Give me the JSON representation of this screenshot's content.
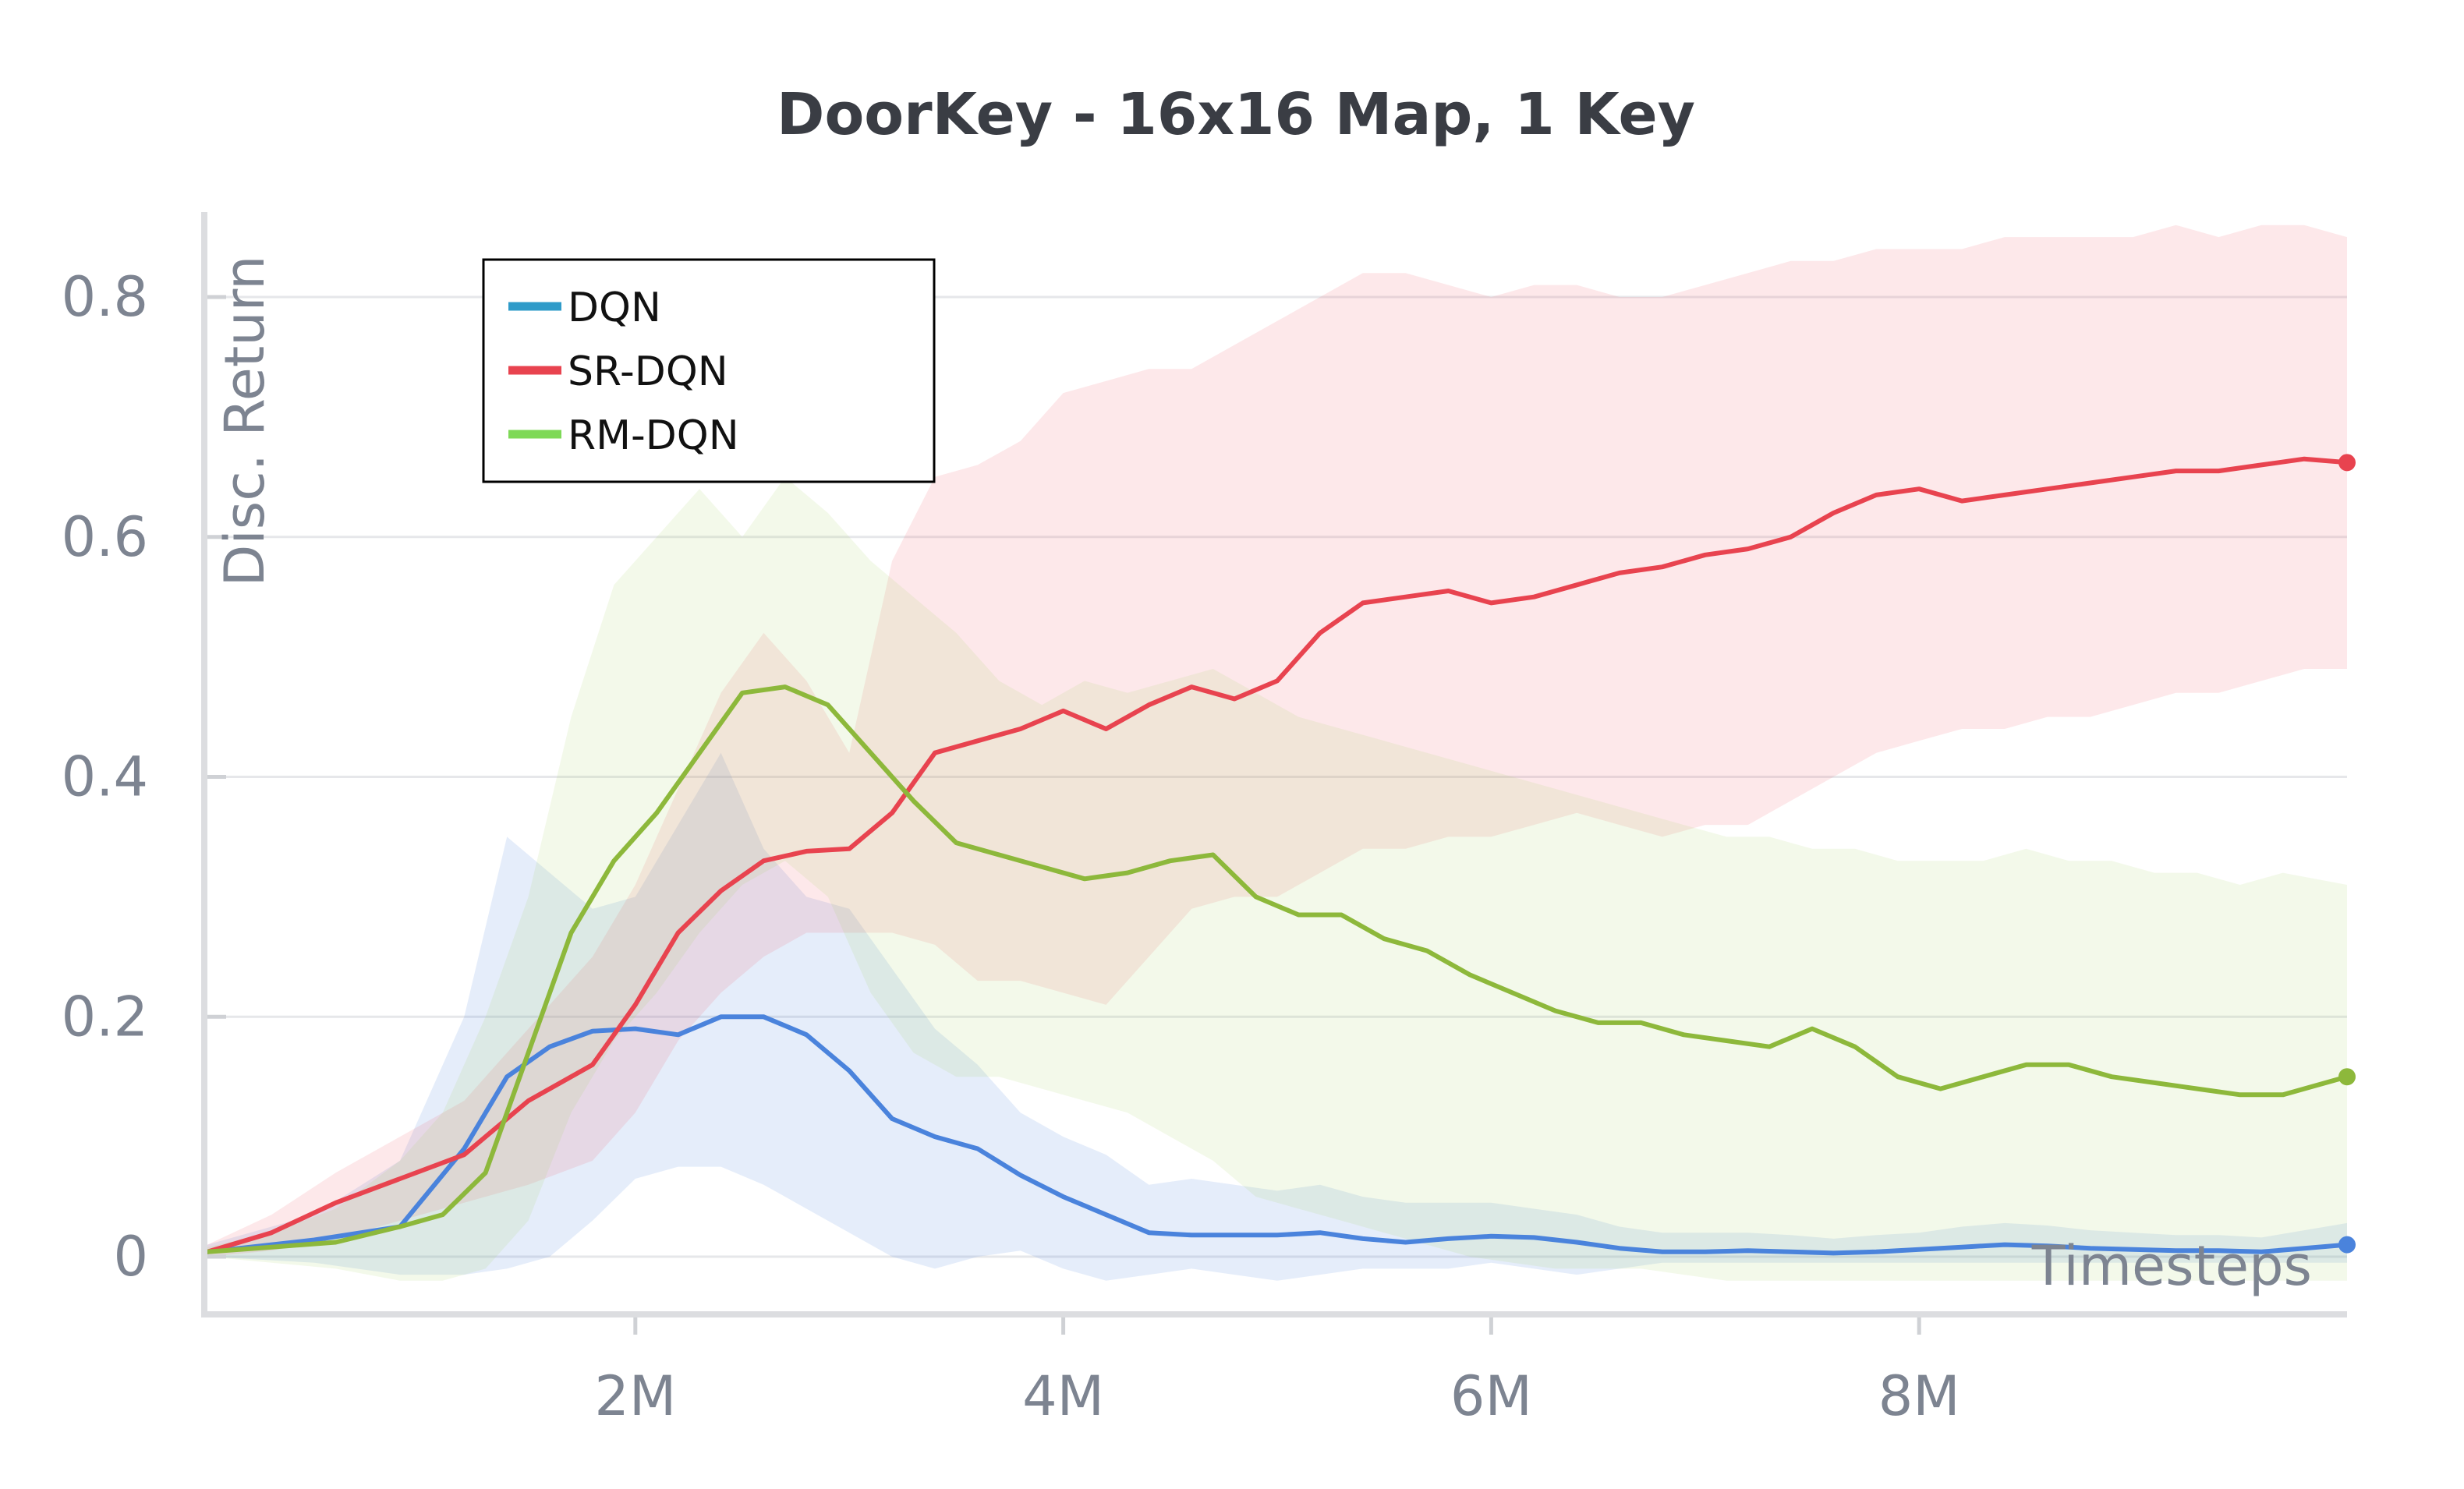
{
  "chart_data": {
    "type": "line",
    "title": "DoorKey - 16x16 Map, 1 Key",
    "xlabel": "Timesteps",
    "ylabel": "Disc. Return",
    "xlim": [
      0,
      10000000
    ],
    "ylim": [
      -0.05,
      0.87
    ],
    "x_ticks": [
      2000000,
      4000000,
      6000000,
      8000000
    ],
    "x_tick_labels": [
      "2M",
      "4M",
      "6M",
      "8M"
    ],
    "y_ticks": [
      0,
      0.2,
      0.4,
      0.6,
      0.8
    ],
    "y_tick_labels": [
      "0",
      "0.2",
      "0.4",
      "0.6",
      "0.8"
    ],
    "grid": true,
    "legend_position": "top-left",
    "series": [
      {
        "name": "DQN",
        "color": "#4a83dc",
        "legend_color": "#2f9bc9",
        "band_color": "#4a83dc",
        "x": [
          0,
          500000,
          900000,
          1200000,
          1400000,
          1600000,
          1800000,
          2000000,
          2200000,
          2400000,
          2600000,
          2800000,
          3000000,
          3200000,
          3400000,
          3600000,
          3800000,
          4000000,
          4200000,
          4400000,
          4600000,
          4800000,
          5000000,
          5200000,
          5400000,
          5600000,
          5800000,
          6000000,
          6200000,
          6400000,
          6600000,
          6800000,
          7000000,
          7200000,
          7400000,
          7600000,
          7800000,
          8000000,
          8200000,
          8400000,
          8600000,
          8800000,
          9000000,
          9200000,
          9400000,
          9600000,
          9800000,
          10000000
        ],
        "values": [
          0.004,
          0.014,
          0.025,
          0.09,
          0.15,
          0.175,
          0.188,
          0.19,
          0.185,
          0.2,
          0.2,
          0.185,
          0.155,
          0.115,
          0.1,
          0.09,
          0.068,
          0.05,
          0.035,
          0.02,
          0.018,
          0.018,
          0.018,
          0.02,
          0.015,
          0.012,
          0.015,
          0.017,
          0.016,
          0.012,
          0.007,
          0.004,
          0.004,
          0.005,
          0.004,
          0.003,
          0.004,
          0.006,
          0.008,
          0.01,
          0.009,
          0.007,
          0.006,
          0.005,
          0.005,
          0.004,
          0.007,
          0.01
        ],
        "lower": [
          0.0,
          -0.005,
          -0.015,
          -0.015,
          -0.01,
          0.0,
          0.03,
          0.065,
          0.075,
          0.075,
          0.06,
          0.04,
          0.02,
          0.0,
          -0.01,
          0.0,
          0.005,
          -0.01,
          -0.02,
          -0.015,
          -0.01,
          -0.015,
          -0.02,
          -0.015,
          -0.01,
          -0.01,
          -0.01,
          -0.005,
          -0.01,
          -0.015,
          -0.01,
          -0.005,
          -0.005,
          -0.005,
          -0.005,
          -0.005,
          -0.005,
          -0.005,
          -0.005,
          -0.005,
          -0.005,
          -0.005,
          -0.005,
          -0.005,
          -0.005,
          -0.005,
          -0.005,
          -0.005
        ],
        "upper": [
          0.01,
          0.035,
          0.08,
          0.2,
          0.35,
          0.32,
          0.29,
          0.3,
          0.36,
          0.42,
          0.34,
          0.3,
          0.29,
          0.24,
          0.19,
          0.16,
          0.12,
          0.1,
          0.085,
          0.06,
          0.065,
          0.06,
          0.055,
          0.06,
          0.05,
          0.045,
          0.045,
          0.045,
          0.04,
          0.035,
          0.025,
          0.02,
          0.02,
          0.02,
          0.018,
          0.015,
          0.018,
          0.02,
          0.025,
          0.028,
          0.026,
          0.022,
          0.02,
          0.018,
          0.018,
          0.016,
          0.022,
          0.028
        ]
      },
      {
        "name": "SR-DQN",
        "color": "#e8434f",
        "legend_color": "#e8434f",
        "band_color": "#ef5a6a",
        "x": [
          0,
          300000,
          600000,
          900000,
          1200000,
          1500000,
          1800000,
          2000000,
          2200000,
          2400000,
          2600000,
          2800000,
          3000000,
          3200000,
          3400000,
          3600000,
          3800000,
          4000000,
          4200000,
          4400000,
          4600000,
          4800000,
          5000000,
          5200000,
          5400000,
          5600000,
          5800000,
          6000000,
          6200000,
          6400000,
          6600000,
          6800000,
          7000000,
          7200000,
          7400000,
          7600000,
          7800000,
          8000000,
          8200000,
          8400000,
          8600000,
          8800000,
          9000000,
          9200000,
          9400000,
          9600000,
          9800000,
          10000000
        ],
        "values": [
          0.004,
          0.02,
          0.045,
          0.065,
          0.085,
          0.13,
          0.16,
          0.21,
          0.27,
          0.305,
          0.33,
          0.338,
          0.34,
          0.37,
          0.42,
          0.43,
          0.44,
          0.455,
          0.44,
          0.46,
          0.475,
          0.465,
          0.48,
          0.52,
          0.545,
          0.55,
          0.555,
          0.545,
          0.55,
          0.56,
          0.57,
          0.575,
          0.585,
          0.59,
          0.6,
          0.62,
          0.635,
          0.64,
          0.63,
          0.635,
          0.64,
          0.645,
          0.65,
          0.655,
          0.655,
          0.66,
          0.665,
          0.662
        ],
        "lower": [
          0.0,
          0.005,
          0.015,
          0.03,
          0.045,
          0.06,
          0.08,
          0.12,
          0.18,
          0.22,
          0.25,
          0.27,
          0.27,
          0.27,
          0.26,
          0.23,
          0.23,
          0.22,
          0.21,
          0.25,
          0.29,
          0.3,
          0.3,
          0.32,
          0.34,
          0.34,
          0.35,
          0.35,
          0.36,
          0.37,
          0.36,
          0.35,
          0.36,
          0.36,
          0.38,
          0.4,
          0.42,
          0.43,
          0.44,
          0.44,
          0.45,
          0.45,
          0.46,
          0.47,
          0.47,
          0.48,
          0.49,
          0.49
        ],
        "upper": [
          0.01,
          0.035,
          0.07,
          0.1,
          0.13,
          0.19,
          0.25,
          0.31,
          0.39,
          0.47,
          0.52,
          0.48,
          0.42,
          0.58,
          0.65,
          0.66,
          0.68,
          0.72,
          0.73,
          0.74,
          0.74,
          0.76,
          0.78,
          0.8,
          0.82,
          0.82,
          0.81,
          0.8,
          0.81,
          0.81,
          0.8,
          0.8,
          0.81,
          0.82,
          0.83,
          0.83,
          0.84,
          0.84,
          0.84,
          0.85,
          0.85,
          0.85,
          0.85,
          0.86,
          0.85,
          0.86,
          0.86,
          0.85
        ]
      },
      {
        "name": "RM-DQN",
        "color": "#8db83b",
        "legend_color": "#7ed957",
        "band_color": "#a8d26a",
        "x": [
          0,
          300000,
          600000,
          900000,
          1100000,
          1300000,
          1500000,
          1700000,
          1900000,
          2100000,
          2300000,
          2500000,
          2700000,
          2900000,
          3100000,
          3300000,
          3500000,
          3700000,
          3900000,
          4100000,
          4300000,
          4500000,
          4700000,
          4900000,
          5100000,
          5300000,
          5500000,
          5700000,
          5900000,
          6100000,
          6300000,
          6500000,
          6700000,
          6900000,
          7100000,
          7300000,
          7500000,
          7700000,
          7900000,
          8100000,
          8300000,
          8500000,
          8700000,
          8900000,
          9100000,
          9300000,
          9500000,
          9700000,
          10000000
        ],
        "values": [
          0.004,
          0.008,
          0.012,
          0.025,
          0.035,
          0.07,
          0.17,
          0.27,
          0.33,
          0.37,
          0.42,
          0.47,
          0.475,
          0.46,
          0.42,
          0.38,
          0.345,
          0.335,
          0.325,
          0.315,
          0.32,
          0.33,
          0.335,
          0.3,
          0.285,
          0.285,
          0.265,
          0.255,
          0.235,
          0.22,
          0.205,
          0.195,
          0.195,
          0.185,
          0.18,
          0.175,
          0.19,
          0.175,
          0.15,
          0.14,
          0.15,
          0.16,
          0.16,
          0.15,
          0.145,
          0.14,
          0.135,
          0.135,
          0.15
        ],
        "lower": [
          0.0,
          -0.005,
          -0.01,
          -0.02,
          -0.02,
          -0.01,
          0.03,
          0.12,
          0.18,
          0.22,
          0.27,
          0.31,
          0.33,
          0.3,
          0.22,
          0.17,
          0.15,
          0.15,
          0.14,
          0.13,
          0.12,
          0.1,
          0.08,
          0.05,
          0.04,
          0.03,
          0.02,
          0.01,
          0.0,
          -0.005,
          -0.01,
          -0.01,
          -0.01,
          -0.015,
          -0.02,
          -0.02,
          -0.02,
          -0.02,
          -0.02,
          -0.02,
          -0.02,
          -0.02,
          -0.02,
          -0.02,
          -0.02,
          -0.02,
          -0.02,
          -0.02,
          -0.02
        ],
        "upper": [
          0.008,
          0.02,
          0.04,
          0.08,
          0.12,
          0.2,
          0.3,
          0.45,
          0.56,
          0.6,
          0.64,
          0.6,
          0.65,
          0.62,
          0.58,
          0.55,
          0.52,
          0.48,
          0.46,
          0.48,
          0.47,
          0.48,
          0.49,
          0.47,
          0.45,
          0.44,
          0.43,
          0.42,
          0.41,
          0.4,
          0.39,
          0.38,
          0.37,
          0.36,
          0.35,
          0.35,
          0.34,
          0.34,
          0.33,
          0.33,
          0.33,
          0.34,
          0.33,
          0.33,
          0.32,
          0.32,
          0.31,
          0.32,
          0.31
        ]
      }
    ]
  }
}
